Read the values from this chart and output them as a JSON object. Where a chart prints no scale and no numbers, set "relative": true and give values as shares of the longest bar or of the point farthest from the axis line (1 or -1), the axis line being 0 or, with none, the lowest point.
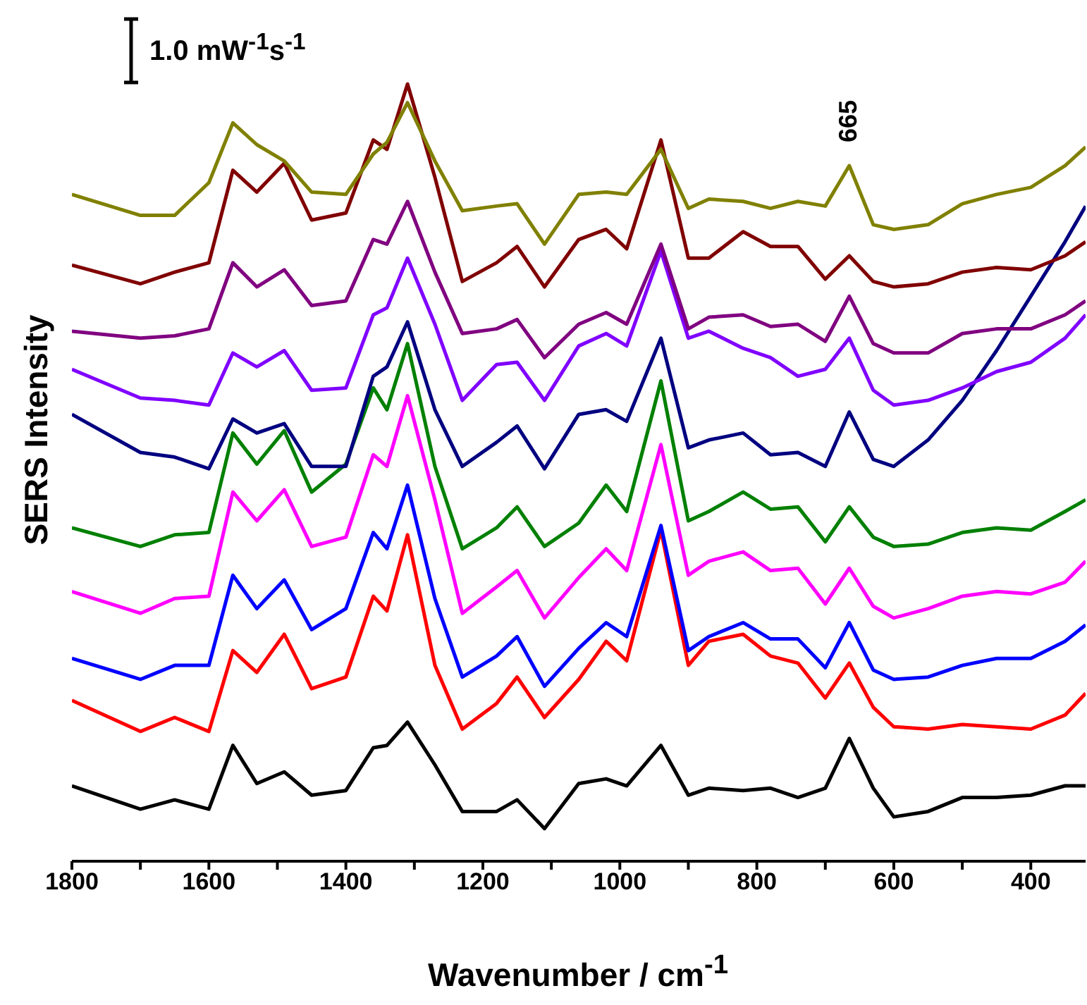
{
  "chart_data": {
    "type": "line",
    "relative": true,
    "xlabel": "Wavenumber / cm$^{-1}$",
    "ylabel": "SERS Intensity",
    "annotations": [
      "1.0 mW$^{-1}$s$^{-1}$",
      {
        "text": "665",
        "x": 665,
        "y": 0.895
      }
    ],
    "xlim": [
      1800,
      320
    ],
    "xticks": [
      1800,
      {
        "value": 1700,
        "label": null
      },
      1600,
      {
        "value": 1500,
        "label": null
      },
      1400,
      {
        "value": 1300,
        "label": null
      },
      1200,
      {
        "value": 1100,
        "label": null
      },
      1000,
      {
        "value": 900,
        "label": null
      },
      800,
      {
        "value": 700,
        "label": null
      },
      600,
      {
        "value": 500,
        "label": null
      },
      400
    ],
    "x": [
      1800,
      1700,
      1650,
      1600,
      1565,
      1530,
      1490,
      1450,
      1400,
      1360,
      1340,
      1310,
      1270,
      1230,
      1180,
      1150,
      1110,
      1060,
      1020,
      990,
      940,
      900,
      870,
      820,
      780,
      740,
      700,
      665,
      630,
      600,
      550,
      500,
      450,
      400,
      350,
      320
    ],
    "series": [
      {
        "color": "#000000",
        "values": [
          0.097,
          0.067,
          0.079,
          0.067,
          0.149,
          0.1,
          0.115,
          0.085,
          0.091,
          0.146,
          0.149,
          0.179,
          0.124,
          0.064,
          0.064,
          0.079,
          0.042,
          0.1,
          0.106,
          0.097,
          0.149,
          0.085,
          0.094,
          0.091,
          0.094,
          0.082,
          0.094,
          0.158,
          0.094,
          0.057,
          0.064,
          0.082,
          0.082,
          0.085,
          0.097,
          0.097
        ]
      },
      {
        "color": "#ff0000",
        "values": [
          0.207,
          0.167,
          0.185,
          0.167,
          0.271,
          0.243,
          0.292,
          0.222,
          0.237,
          0.341,
          0.322,
          0.42,
          0.252,
          0.17,
          0.203,
          0.237,
          0.185,
          0.234,
          0.283,
          0.258,
          0.426,
          0.252,
          0.283,
          0.292,
          0.264,
          0.255,
          0.21,
          0.255,
          0.198,
          0.173,
          0.17,
          0.176,
          0.173,
          0.17,
          0.188,
          0.216
        ]
      },
      {
        "color": "#0000ff",
        "values": [
          0.261,
          0.234,
          0.252,
          0.252,
          0.368,
          0.325,
          0.362,
          0.298,
          0.325,
          0.423,
          0.402,
          0.484,
          0.338,
          0.237,
          0.264,
          0.289,
          0.225,
          0.274,
          0.307,
          0.289,
          0.432,
          0.271,
          0.289,
          0.307,
          0.286,
          0.286,
          0.249,
          0.307,
          0.246,
          0.234,
          0.237,
          0.252,
          0.261,
          0.261,
          0.283,
          0.304
        ]
      },
      {
        "color": "#ff00ff",
        "values": [
          0.347,
          0.319,
          0.338,
          0.341,
          0.475,
          0.438,
          0.478,
          0.405,
          0.417,
          0.523,
          0.508,
          0.599,
          0.465,
          0.319,
          0.353,
          0.374,
          0.313,
          0.365,
          0.402,
          0.374,
          0.536,
          0.368,
          0.386,
          0.398,
          0.374,
          0.377,
          0.331,
          0.377,
          0.328,
          0.313,
          0.325,
          0.341,
          0.347,
          0.344,
          0.359,
          0.386
        ]
      },
      {
        "color": "#008000",
        "values": [
          0.429,
          0.405,
          0.42,
          0.423,
          0.551,
          0.511,
          0.554,
          0.475,
          0.511,
          0.609,
          0.581,
          0.666,
          0.508,
          0.402,
          0.429,
          0.456,
          0.405,
          0.435,
          0.484,
          0.45,
          0.618,
          0.438,
          0.45,
          0.475,
          0.453,
          0.456,
          0.411,
          0.456,
          0.417,
          0.405,
          0.408,
          0.423,
          0.429,
          0.426,
          0.45,
          0.465
        ]
      },
      {
        "color": "#000080",
        "values": [
          0.575,
          0.526,
          0.52,
          0.505,
          0.569,
          0.551,
          0.563,
          0.508,
          0.508,
          0.624,
          0.636,
          0.694,
          0.581,
          0.508,
          0.539,
          0.56,
          0.505,
          0.575,
          0.581,
          0.566,
          0.673,
          0.532,
          0.542,
          0.551,
          0.523,
          0.526,
          0.508,
          0.578,
          0.517,
          0.508,
          0.542,
          0.593,
          0.657,
          0.727,
          0.797,
          0.843
        ]
      },
      {
        "color": "#8000ff",
        "values": [
          0.633,
          0.596,
          0.593,
          0.587,
          0.654,
          0.636,
          0.657,
          0.606,
          0.609,
          0.703,
          0.712,
          0.776,
          0.691,
          0.593,
          0.639,
          0.642,
          0.593,
          0.663,
          0.679,
          0.663,
          0.785,
          0.673,
          0.682,
          0.66,
          0.648,
          0.624,
          0.633,
          0.673,
          0.606,
          0.587,
          0.593,
          0.609,
          0.63,
          0.642,
          0.673,
          0.703
        ]
      },
      {
        "color": "#800080",
        "values": [
          0.682,
          0.673,
          0.676,
          0.685,
          0.77,
          0.739,
          0.761,
          0.715,
          0.721,
          0.8,
          0.794,
          0.849,
          0.758,
          0.679,
          0.685,
          0.697,
          0.648,
          0.691,
          0.706,
          0.691,
          0.794,
          0.685,
          0.7,
          0.703,
          0.688,
          0.691,
          0.669,
          0.727,
          0.666,
          0.654,
          0.654,
          0.679,
          0.685,
          0.685,
          0.703,
          0.721
        ]
      },
      {
        "color": "#800000",
        "values": [
          0.767,
          0.743,
          0.758,
          0.77,
          0.889,
          0.861,
          0.898,
          0.825,
          0.834,
          0.928,
          0.916,
          1,
          0.88,
          0.746,
          0.77,
          0.791,
          0.739,
          0.8,
          0.813,
          0.788,
          0.928,
          0.776,
          0.776,
          0.81,
          0.791,
          0.791,
          0.749,
          0.779,
          0.746,
          0.739,
          0.743,
          0.758,
          0.764,
          0.761,
          0.779,
          0.797
        ]
      },
      {
        "color": "#808000",
        "values": [
          0.858,
          0.831,
          0.831,
          0.873,
          0.95,
          0.922,
          0.901,
          0.861,
          0.858,
          0.91,
          0.925,
          0.976,
          0.901,
          0.837,
          0.843,
          0.846,
          0.794,
          0.858,
          0.861,
          0.858,
          0.916,
          0.84,
          0.852,
          0.849,
          0.84,
          0.849,
          0.843,
          0.895,
          0.819,
          0.813,
          0.819,
          0.846,
          0.858,
          0.867,
          0.895,
          0.919
        ]
      }
    ]
  }
}
